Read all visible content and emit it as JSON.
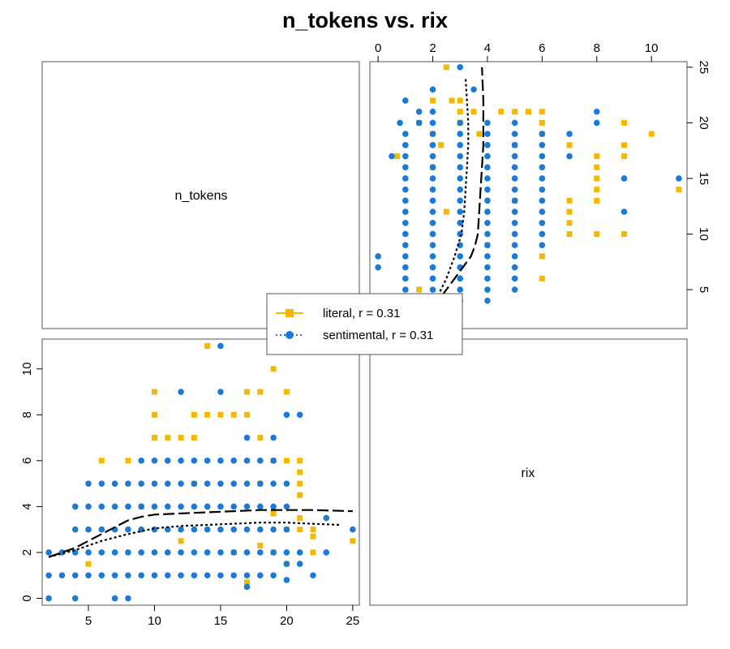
{
  "chart_data": {
    "type": "scatter",
    "title": "n_tokens vs. rix",
    "variables": [
      "n_tokens",
      "rix"
    ],
    "axes": {
      "n_tokens": {
        "range": [
          1.5,
          25.5
        ],
        "ticks": [
          5,
          10,
          15,
          20,
          25
        ]
      },
      "rix": {
        "range": [
          -0.3,
          11.3
        ],
        "ticks_bottom_left": [
          0,
          2,
          4,
          6,
          8,
          10
        ],
        "ticks_top": [
          0,
          2,
          4,
          6,
          8,
          10
        ]
      },
      "n_tokens_right": {
        "ticks": [
          5,
          10,
          15,
          20,
          25
        ]
      }
    },
    "legend": {
      "placement": "center",
      "entries": [
        {
          "label": "literal, r = 0.31",
          "color": "#F5B800",
          "marker": "square",
          "line": "dashed"
        },
        {
          "label": "sentimental, r = 0.31",
          "color": "#1B7AD8",
          "marker": "circle",
          "line": "dotted"
        }
      ]
    },
    "series": [
      {
        "name": "literal",
        "color": "#F5B800",
        "points": [
          [
            5,
            1.5
          ],
          [
            6,
            6
          ],
          [
            8,
            6
          ],
          [
            9,
            4
          ],
          [
            10,
            9
          ],
          [
            10,
            8
          ],
          [
            10,
            7
          ],
          [
            11,
            7
          ],
          [
            12,
            7
          ],
          [
            12,
            2.5
          ],
          [
            13,
            8
          ],
          [
            13,
            7
          ],
          [
            13,
            5
          ],
          [
            14,
            11
          ],
          [
            14,
            8
          ],
          [
            15,
            8
          ],
          [
            16,
            8
          ],
          [
            16,
            2
          ],
          [
            17,
            9
          ],
          [
            17,
            8
          ],
          [
            17,
            0.7
          ],
          [
            18,
            9
          ],
          [
            18,
            7
          ],
          [
            18,
            5
          ],
          [
            18,
            2.3
          ],
          [
            19,
            10
          ],
          [
            19,
            6
          ],
          [
            19,
            3.7
          ],
          [
            19,
            2
          ],
          [
            20,
            9
          ],
          [
            20,
            6
          ],
          [
            20,
            3
          ],
          [
            20,
            1.5
          ],
          [
            21,
            6
          ],
          [
            21,
            5.5
          ],
          [
            21,
            5
          ],
          [
            21,
            4.5
          ],
          [
            21,
            3.5
          ],
          [
            21,
            3
          ],
          [
            22,
            3
          ],
          [
            22,
            2.7
          ],
          [
            22,
            2
          ],
          [
            25,
            2.5
          ]
        ],
        "smooth": [
          [
            2,
            1.8
          ],
          [
            4,
            2.2
          ],
          [
            6,
            2.8
          ],
          [
            8,
            3.4
          ],
          [
            9,
            3.55
          ],
          [
            10,
            3.65
          ],
          [
            12,
            3.7
          ],
          [
            14,
            3.75
          ],
          [
            16,
            3.8
          ],
          [
            18,
            3.85
          ],
          [
            20,
            3.85
          ],
          [
            22,
            3.85
          ],
          [
            25,
            3.8
          ]
        ]
      },
      {
        "name": "sentimental",
        "color": "#1B7AD8",
        "points": [
          [
            2,
            0
          ],
          [
            2,
            1
          ],
          [
            2,
            2
          ],
          [
            3,
            1
          ],
          [
            3,
            2
          ],
          [
            4,
            0
          ],
          [
            4,
            1
          ],
          [
            4,
            2
          ],
          [
            4,
            3
          ],
          [
            4,
            4
          ],
          [
            5,
            1
          ],
          [
            5,
            2
          ],
          [
            5,
            3
          ],
          [
            5,
            4
          ],
          [
            5,
            5
          ],
          [
            6,
            1
          ],
          [
            6,
            2
          ],
          [
            6,
            3
          ],
          [
            6,
            4
          ],
          [
            6,
            5
          ],
          [
            7,
            0
          ],
          [
            7,
            1
          ],
          [
            7,
            2
          ],
          [
            7,
            3
          ],
          [
            7,
            4
          ],
          [
            7,
            5
          ],
          [
            8,
            0
          ],
          [
            8,
            1
          ],
          [
            8,
            2
          ],
          [
            8,
            3
          ],
          [
            8,
            4
          ],
          [
            8,
            5
          ],
          [
            9,
            1
          ],
          [
            9,
            2
          ],
          [
            9,
            3
          ],
          [
            9,
            4
          ],
          [
            9,
            5
          ],
          [
            9,
            6
          ],
          [
            10,
            1
          ],
          [
            10,
            2
          ],
          [
            10,
            3
          ],
          [
            10,
            4
          ],
          [
            10,
            5
          ],
          [
            10,
            6
          ],
          [
            11,
            1
          ],
          [
            11,
            2
          ],
          [
            11,
            3
          ],
          [
            11,
            4
          ],
          [
            11,
            5
          ],
          [
            11,
            6
          ],
          [
            12,
            1
          ],
          [
            12,
            2
          ],
          [
            12,
            3
          ],
          [
            12,
            4
          ],
          [
            12,
            5
          ],
          [
            12,
            6
          ],
          [
            12,
            9
          ],
          [
            13,
            1
          ],
          [
            13,
            2
          ],
          [
            13,
            3
          ],
          [
            13,
            4
          ],
          [
            13,
            5
          ],
          [
            13,
            6
          ],
          [
            14,
            1
          ],
          [
            14,
            2
          ],
          [
            14,
            3
          ],
          [
            14,
            4
          ],
          [
            14,
            5
          ],
          [
            14,
            6
          ],
          [
            15,
            1
          ],
          [
            15,
            2
          ],
          [
            15,
            3
          ],
          [
            15,
            4
          ],
          [
            15,
            5
          ],
          [
            15,
            6
          ],
          [
            15,
            9
          ],
          [
            15,
            11
          ],
          [
            16,
            1
          ],
          [
            16,
            2
          ],
          [
            16,
            3
          ],
          [
            16,
            4
          ],
          [
            16,
            5
          ],
          [
            16,
            6
          ],
          [
            17,
            0.5
          ],
          [
            17,
            1
          ],
          [
            17,
            2
          ],
          [
            17,
            3
          ],
          [
            17,
            4
          ],
          [
            17,
            5
          ],
          [
            17,
            6
          ],
          [
            17,
            7
          ],
          [
            18,
            1
          ],
          [
            18,
            2
          ],
          [
            18,
            3
          ],
          [
            18,
            4
          ],
          [
            18,
            5
          ],
          [
            18,
            6
          ],
          [
            19,
            1
          ],
          [
            19,
            2
          ],
          [
            19,
            3
          ],
          [
            19,
            4
          ],
          [
            19,
            5
          ],
          [
            19,
            6
          ],
          [
            19,
            7
          ],
          [
            20,
            0.8
          ],
          [
            20,
            1.5
          ],
          [
            20,
            2
          ],
          [
            20,
            3
          ],
          [
            20,
            4
          ],
          [
            20,
            5
          ],
          [
            20,
            8
          ],
          [
            21,
            1.5
          ],
          [
            21,
            2
          ],
          [
            21,
            8
          ],
          [
            22,
            1
          ],
          [
            23,
            2
          ],
          [
            23,
            3.5
          ],
          [
            25,
            3
          ]
        ],
        "smooth": [
          [
            2,
            1.8
          ],
          [
            4,
            2.1
          ],
          [
            6,
            2.5
          ],
          [
            8,
            2.8
          ],
          [
            10,
            3.05
          ],
          [
            12,
            3.15
          ],
          [
            14,
            3.2
          ],
          [
            16,
            3.25
          ],
          [
            18,
            3.3
          ],
          [
            20,
            3.3
          ],
          [
            22,
            3.25
          ],
          [
            24,
            3.2
          ]
        ]
      }
    ]
  }
}
